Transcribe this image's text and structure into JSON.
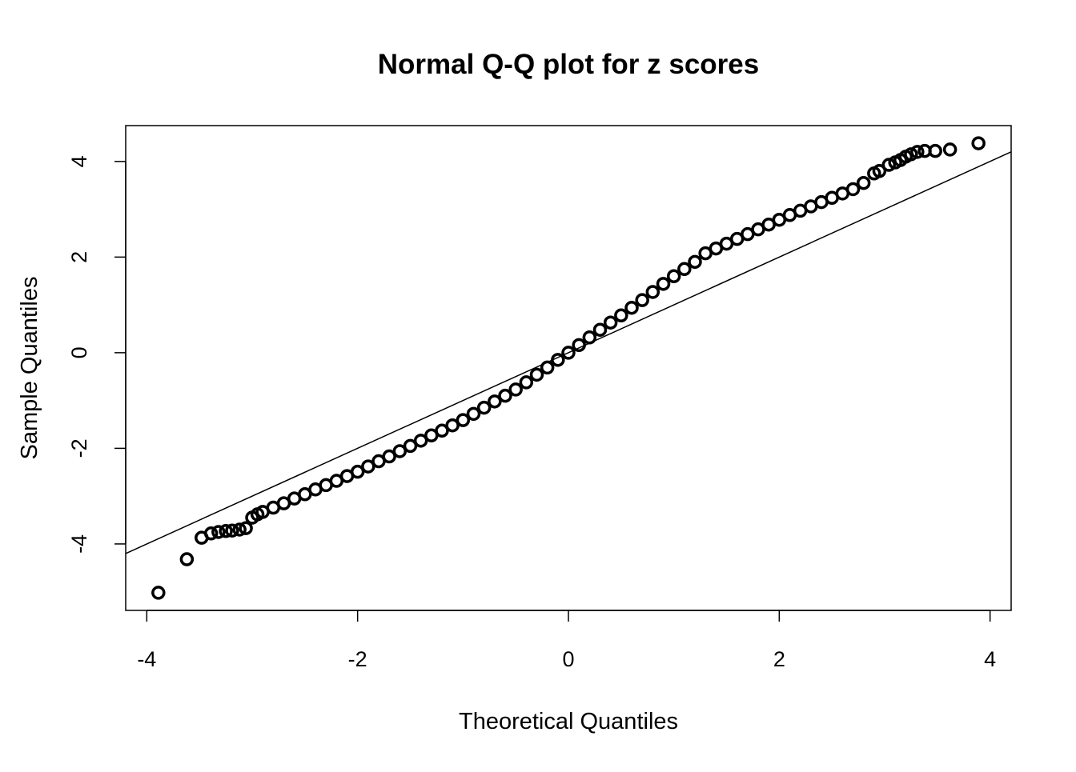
{
  "chart_data": {
    "type": "scatter",
    "title": "Normal Q-Q plot for z scores",
    "xlabel": "Theoretical Quantiles",
    "ylabel": "Sample Quantiles",
    "xlim": [
      -4.2,
      4.2
    ],
    "ylim": [
      -5.39,
      4.75
    ],
    "xticks": [
      -4,
      -2,
      0,
      2,
      4
    ],
    "yticks": [
      -4,
      -2,
      0,
      2,
      4
    ],
    "grid": false,
    "marker": "open-circle",
    "reference_line": {
      "intercept": 0,
      "slope": 1
    },
    "points": [
      [
        -3.89,
        -5.02
      ],
      [
        -3.62,
        -4.32
      ],
      [
        -3.48,
        -3.87
      ],
      [
        -3.39,
        -3.78
      ],
      [
        -3.32,
        -3.75
      ],
      [
        -3.25,
        -3.73
      ],
      [
        -3.19,
        -3.72
      ],
      [
        -3.12,
        -3.7
      ],
      [
        -3.06,
        -3.67
      ],
      [
        -3.0,
        -3.45
      ],
      [
        -2.95,
        -3.38
      ],
      [
        -2.9,
        -3.33
      ],
      [
        -2.8,
        -3.24
      ],
      [
        -2.7,
        -3.15
      ],
      [
        -2.6,
        -3.05
      ],
      [
        -2.5,
        -2.96
      ],
      [
        -2.4,
        -2.86
      ],
      [
        -2.3,
        -2.77
      ],
      [
        -2.2,
        -2.68
      ],
      [
        -2.1,
        -2.58
      ],
      [
        -2.0,
        -2.49
      ],
      [
        -1.9,
        -2.38
      ],
      [
        -1.8,
        -2.27
      ],
      [
        -1.7,
        -2.17
      ],
      [
        -1.6,
        -2.06
      ],
      [
        -1.5,
        -1.95
      ],
      [
        -1.4,
        -1.84
      ],
      [
        -1.3,
        -1.73
      ],
      [
        -1.2,
        -1.63
      ],
      [
        -1.1,
        -1.52
      ],
      [
        -1.0,
        -1.41
      ],
      [
        -0.9,
        -1.28
      ],
      [
        -0.8,
        -1.15
      ],
      [
        -0.7,
        -1.02
      ],
      [
        -0.6,
        -0.9
      ],
      [
        -0.5,
        -0.77
      ],
      [
        -0.4,
        -0.62
      ],
      [
        -0.3,
        -0.46
      ],
      [
        -0.2,
        -0.31
      ],
      [
        -0.1,
        -0.15
      ],
      [
        0.0,
        0.0
      ],
      [
        0.1,
        0.16
      ],
      [
        0.2,
        0.32
      ],
      [
        0.3,
        0.48
      ],
      [
        0.4,
        0.63
      ],
      [
        0.5,
        0.78
      ],
      [
        0.6,
        0.94
      ],
      [
        0.7,
        1.1
      ],
      [
        0.8,
        1.27
      ],
      [
        0.9,
        1.44
      ],
      [
        1.0,
        1.6
      ],
      [
        1.1,
        1.75
      ],
      [
        1.2,
        1.9
      ],
      [
        1.3,
        2.08
      ],
      [
        1.4,
        2.18
      ],
      [
        1.5,
        2.28
      ],
      [
        1.6,
        2.38
      ],
      [
        1.7,
        2.48
      ],
      [
        1.8,
        2.58
      ],
      [
        1.9,
        2.68
      ],
      [
        2.0,
        2.78
      ],
      [
        2.1,
        2.88
      ],
      [
        2.2,
        2.97
      ],
      [
        2.3,
        3.06
      ],
      [
        2.4,
        3.15
      ],
      [
        2.5,
        3.24
      ],
      [
        2.6,
        3.33
      ],
      [
        2.7,
        3.42
      ],
      [
        2.8,
        3.55
      ],
      [
        2.9,
        3.75
      ],
      [
        2.95,
        3.8
      ],
      [
        3.04,
        3.93
      ],
      [
        3.1,
        3.98
      ],
      [
        3.15,
        4.03
      ],
      [
        3.2,
        4.1
      ],
      [
        3.25,
        4.15
      ],
      [
        3.31,
        4.2
      ],
      [
        3.38,
        4.22
      ],
      [
        3.48,
        4.22
      ],
      [
        3.62,
        4.25
      ],
      [
        3.89,
        4.38
      ]
    ]
  }
}
